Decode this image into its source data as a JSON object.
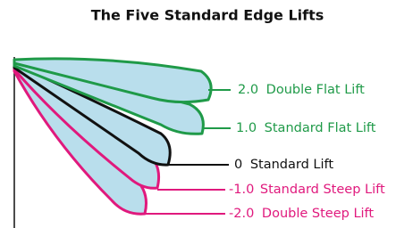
{
  "title": "The Five Standard Edge Lifts",
  "labels": [
    {
      "value": "2.0",
      "name": "Double Flat Lift"
    },
    {
      "value": "1.0",
      "name": "Standard Flat Lift"
    },
    {
      "value": "0",
      "name": "Standard Lift"
    },
    {
      "value": "-1.0",
      "name": "Standard Steep Lift"
    },
    {
      "value": "-2.0",
      "name": "Double Steep Lift"
    }
  ]
}
